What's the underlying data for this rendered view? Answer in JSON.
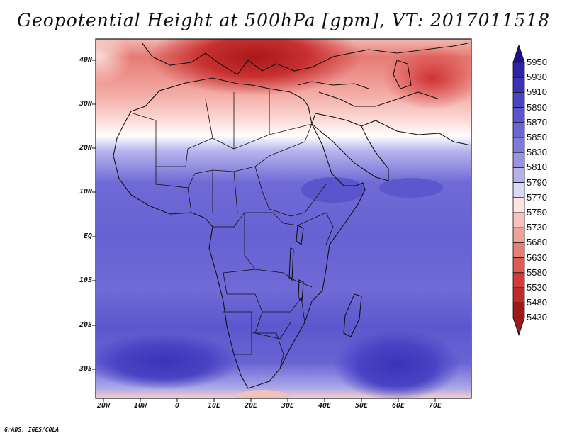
{
  "title": "Geopotential Height at 500hPa [gpm], VT: 2017011518",
  "credit": "GrADS: IGES/COLA",
  "lat_labels": [
    "40N",
    "30N",
    "20N",
    "10N",
    "EQ",
    "10S",
    "20S",
    "30S"
  ],
  "lon_labels": [
    "20W",
    "10W",
    "0",
    "10E",
    "20E",
    "30E",
    "40E",
    "50E",
    "60E",
    "70E"
  ],
  "colorbar": {
    "levels": [
      "5950",
      "5930",
      "5910",
      "5890",
      "5870",
      "5850",
      "5830",
      "5810",
      "5790",
      "5770",
      "5750",
      "5730",
      "5680",
      "5630",
      "5580",
      "5530",
      "5480",
      "5430"
    ],
    "colors": [
      "#1d0f8f",
      "#2c23a8",
      "#3a33b8",
      "#4a44c4",
      "#5a55cc",
      "#6a66d4",
      "#7e7adb",
      "#9894e3",
      "#b4b2ec",
      "#d9d8f6",
      "#fde4e0",
      "#f7c2bb",
      "#f0a29a",
      "#e77f76",
      "#de5c55",
      "#d43c3a",
      "#c02a2a",
      "#a01818"
    ]
  }
}
